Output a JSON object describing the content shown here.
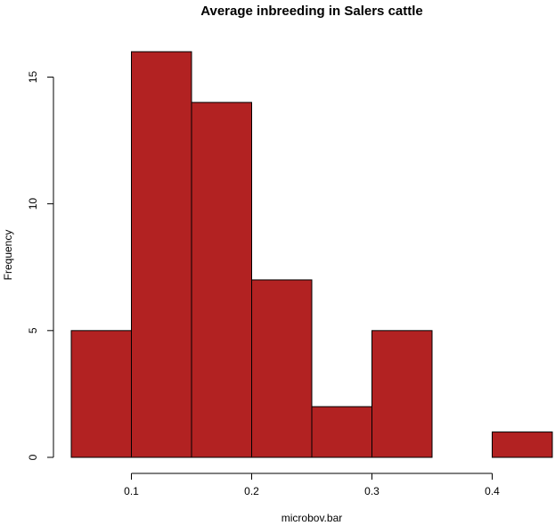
{
  "chart_data": {
    "type": "bar",
    "title": "Average inbreeding in Salers cattle",
    "xlabel": "microbov.bar",
    "ylabel": "Frequency",
    "bins": [
      {
        "start": 0.05,
        "end": 0.1,
        "count": 5
      },
      {
        "start": 0.1,
        "end": 0.15,
        "count": 16
      },
      {
        "start": 0.15,
        "end": 0.2,
        "count": 14
      },
      {
        "start": 0.2,
        "end": 0.25,
        "count": 7
      },
      {
        "start": 0.25,
        "end": 0.3,
        "count": 2
      },
      {
        "start": 0.3,
        "end": 0.35,
        "count": 5
      },
      {
        "start": 0.35,
        "end": 0.4,
        "count": 0
      },
      {
        "start": 0.4,
        "end": 0.45,
        "count": 1
      }
    ],
    "xlim": [
      0.05,
      0.45
    ],
    "ylim": [
      0,
      16
    ],
    "x_ticks": [
      0.1,
      0.2,
      0.3,
      0.4
    ],
    "x_tick_labels": [
      "0.1",
      "0.2",
      "0.3",
      "0.4"
    ],
    "y_ticks": [
      0,
      5,
      10,
      15
    ],
    "y_tick_labels": [
      "0",
      "5",
      "10",
      "15"
    ],
    "bar_color": "#b22222",
    "grid": false
  }
}
